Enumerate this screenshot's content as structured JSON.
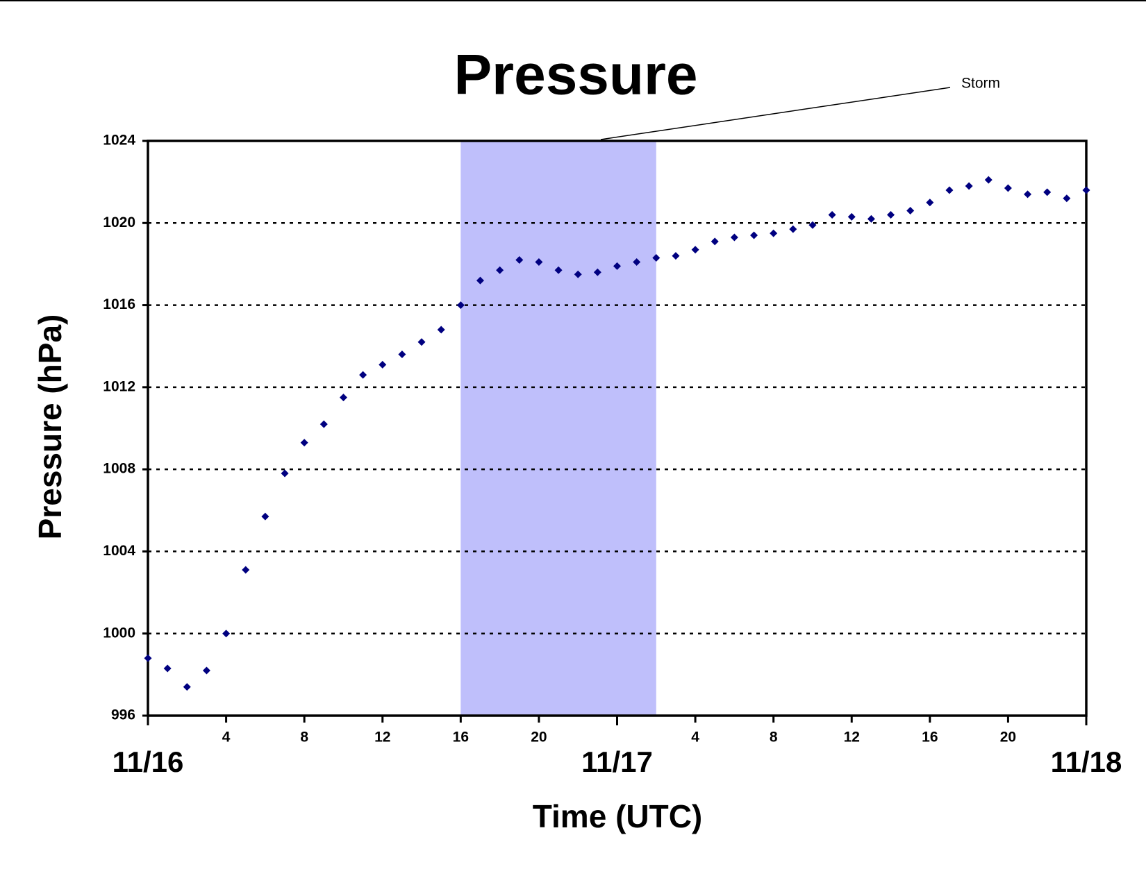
{
  "chart_data": {
    "type": "scatter",
    "title": "Pressure",
    "x_label": "Time (UTC)",
    "y_label": "Pressure (hPa)",
    "x": [
      0,
      1,
      2,
      3,
      4,
      5,
      6,
      7,
      8,
      9,
      10,
      11,
      12,
      13,
      14,
      15,
      16,
      17,
      18,
      19,
      20,
      21,
      22,
      23,
      24,
      25,
      26,
      27,
      28,
      29,
      30,
      31,
      32,
      33,
      34,
      35,
      36,
      37,
      38,
      39,
      40,
      41,
      42,
      43,
      44,
      45,
      46,
      47,
      48
    ],
    "series": [
      {
        "name": "Pressure",
        "color": "#000080",
        "values": [
          998.8,
          998.3,
          997.4,
          998.2,
          1000.0,
          1003.1,
          1005.7,
          1007.8,
          1009.3,
          1010.2,
          1011.5,
          1012.6,
          1013.1,
          1013.6,
          1014.2,
          1014.8,
          1016.0,
          1017.2,
          1017.7,
          1018.2,
          1018.1,
          1017.7,
          1017.5,
          1017.6,
          1017.9,
          1018.1,
          1018.3,
          1018.4,
          1018.7,
          1019.1,
          1019.3,
          1019.4,
          1019.5,
          1019.7,
          1019.9,
          1020.4,
          1020.3,
          1020.2,
          1020.4,
          1020.6,
          1021.0,
          1021.6,
          1021.8,
          1022.1,
          1021.7,
          1021.4,
          1021.5,
          1021.2,
          1021.6
        ]
      }
    ],
    "xlim": [
      0,
      48
    ],
    "xticks": [
      4,
      8,
      12,
      16,
      20,
      {
        "value": 28,
        "label": "4"
      },
      {
        "value": 32,
        "label": "8"
      },
      {
        "value": 36,
        "label": "12"
      },
      {
        "value": 40,
        "label": "16"
      },
      {
        "value": 44,
        "label": "20"
      }
    ],
    "x_date_ticks": [
      {
        "value": 0,
        "label": "11/16"
      },
      {
        "value": 24,
        "label": "11/17"
      },
      {
        "value": 48,
        "label": "11/18"
      }
    ],
    "ylim": [
      996,
      1024
    ],
    "yticks": [
      996,
      1000,
      1004,
      1008,
      1012,
      1016,
      1020,
      1024
    ],
    "grid": true,
    "shaded_span": [
      16,
      26
    ],
    "shade_color": "#bfbffb",
    "annotation": "Storm"
  }
}
